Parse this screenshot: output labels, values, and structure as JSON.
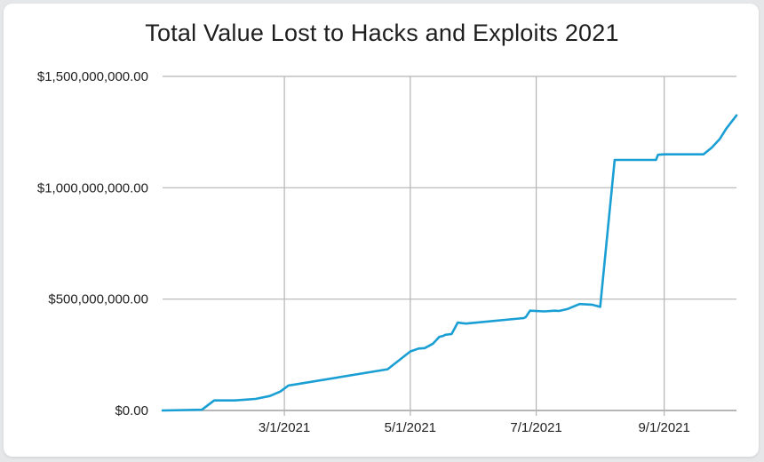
{
  "chart_data": {
    "type": "line",
    "title": "Total Value Lost to Hacks and Exploits 2021",
    "xlabel": "",
    "ylabel": "",
    "ylim": [
      0,
      1500000000
    ],
    "xlim": [
      "2021-01-01",
      "2021-10-06"
    ],
    "grid": true,
    "legend": "none",
    "y_ticks": [
      {
        "value": 0,
        "label": "$0.00"
      },
      {
        "value": 500000000,
        "label": "$500,000,000.00"
      },
      {
        "value": 1000000000,
        "label": "$1,000,000,000.00"
      },
      {
        "value": 1500000000,
        "label": "$1,500,000,000.00"
      }
    ],
    "x_ticks": [
      {
        "value": "2021-03-01",
        "label": "3/1/2021"
      },
      {
        "value": "2021-05-01",
        "label": "5/1/2021"
      },
      {
        "value": "2021-07-01",
        "label": "7/1/2021"
      },
      {
        "value": "2021-09-01",
        "label": "9/1/2021"
      }
    ],
    "series": [
      {
        "color": "#1a9fd4",
        "x": [
          "2021-01-01",
          "2021-01-20",
          "2021-01-26",
          "2021-02-05",
          "2021-02-15",
          "2021-02-22",
          "2021-02-27",
          "2021-03-03",
          "2021-03-05",
          "2021-04-20",
          "2021-05-01",
          "2021-05-05",
          "2021-05-08",
          "2021-05-12",
          "2021-05-15",
          "2021-05-17",
          "2021-05-18",
          "2021-05-21",
          "2021-05-24",
          "2021-05-26",
          "2021-05-28",
          "2021-06-25",
          "2021-06-26",
          "2021-06-28",
          "2021-07-05",
          "2021-07-10",
          "2021-07-12",
          "2021-07-16",
          "2021-07-22",
          "2021-07-28",
          "2021-08-01",
          "2021-08-08",
          "2021-08-15",
          "2021-08-20",
          "2021-08-28",
          "2021-08-29",
          "2021-09-01",
          "2021-09-10",
          "2021-09-17",
          "2021-09-20",
          "2021-09-24",
          "2021-09-28",
          "2021-10-01",
          "2021-10-06"
        ],
        "values": [
          0,
          3000000,
          45000000,
          45000000,
          52000000,
          65000000,
          85000000,
          112000000,
          115000000,
          185000000,
          265000000,
          278000000,
          280000000,
          300000000,
          330000000,
          335000000,
          340000000,
          343000000,
          395000000,
          392000000,
          390000000,
          415000000,
          420000000,
          448000000,
          445000000,
          448000000,
          447000000,
          455000000,
          478000000,
          475000000,
          465000000,
          1125000000,
          1125000000,
          1125000000,
          1125000000,
          1148000000,
          1150000000,
          1150000000,
          1150000000,
          1150000000,
          1180000000,
          1220000000,
          1265000000,
          1325000000
        ]
      }
    ]
  }
}
